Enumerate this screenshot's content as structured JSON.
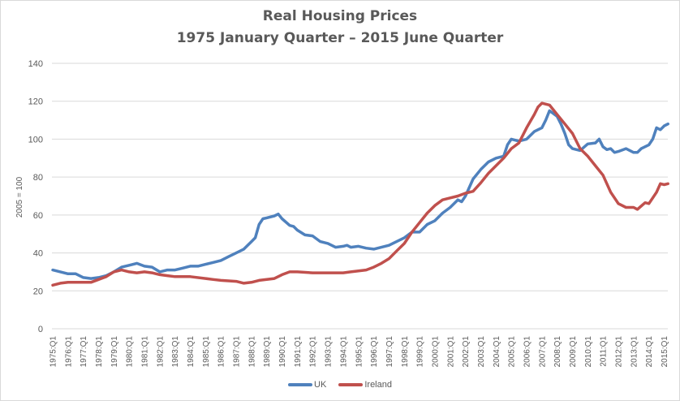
{
  "chart_data": {
    "type": "line",
    "title": "Real Housing  Prices",
    "subtitle": "1975 January  Quarter – 2015 June Quarter",
    "xlabel": "",
    "ylabel": "2005 = 100",
    "ylim": [
      0,
      140
    ],
    "xlim": [
      1975.0,
      2015.25
    ],
    "yticks": [
      0,
      20,
      40,
      60,
      80,
      100,
      120,
      140
    ],
    "grid": true,
    "legend_position": "bottom",
    "xtick_labels": [
      "1975:Q1",
      "1976:Q1",
      "1977:Q1",
      "1978:Q1",
      "1979:Q1",
      "1980:Q1",
      "1981:Q1",
      "1982:Q1",
      "1983:Q1",
      "1984:Q1",
      "1985:Q1",
      "1986:Q1",
      "1987:Q1",
      "1988:Q1",
      "1989:Q1",
      "1990:Q1",
      "1991:Q1",
      "1992:Q1",
      "1993:Q1",
      "1994:Q1",
      "1995:Q1",
      "1996:Q1",
      "1997:Q1",
      "1998:Q1",
      "1999:Q1",
      "2000:Q1",
      "2001:Q1",
      "2002:Q1",
      "2003:Q1",
      "2004:Q1",
      "2005:Q1",
      "2006:Q1",
      "2007:Q1",
      "2008:Q1",
      "2009:Q1",
      "2010:Q1",
      "2011:Q1",
      "2012:Q1",
      "2013:Q1",
      "2014:Q1",
      "2015:Q1"
    ],
    "series": [
      {
        "name": "UK",
        "color": "#4f81bd",
        "points": [
          [
            1975.0,
            31
          ],
          [
            1975.5,
            30
          ],
          [
            1976.0,
            29
          ],
          [
            1976.5,
            29
          ],
          [
            1977.0,
            27
          ],
          [
            1977.5,
            26.5
          ],
          [
            1978.0,
            27
          ],
          [
            1978.5,
            28
          ],
          [
            1979.0,
            30
          ],
          [
            1979.5,
            32.5
          ],
          [
            1980.0,
            33.5
          ],
          [
            1980.5,
            34.5
          ],
          [
            1981.0,
            33
          ],
          [
            1981.5,
            32.5
          ],
          [
            1982.0,
            30
          ],
          [
            1982.5,
            31
          ],
          [
            1983.0,
            31
          ],
          [
            1983.5,
            32
          ],
          [
            1984.0,
            33
          ],
          [
            1984.5,
            33
          ],
          [
            1985.0,
            34
          ],
          [
            1985.5,
            35
          ],
          [
            1986.0,
            36
          ],
          [
            1986.5,
            38
          ],
          [
            1987.0,
            40
          ],
          [
            1987.5,
            42
          ],
          [
            1988.0,
            46
          ],
          [
            1988.25,
            48
          ],
          [
            1988.5,
            55
          ],
          [
            1988.75,
            58
          ],
          [
            1989.0,
            58.5
          ],
          [
            1989.5,
            59.5
          ],
          [
            1989.75,
            60.5
          ],
          [
            1990.0,
            58
          ],
          [
            1990.5,
            54.5
          ],
          [
            1990.75,
            54
          ],
          [
            1991.0,
            52
          ],
          [
            1991.5,
            49.5
          ],
          [
            1992.0,
            49
          ],
          [
            1992.5,
            46
          ],
          [
            1993.0,
            45
          ],
          [
            1993.5,
            43
          ],
          [
            1994.0,
            43.5
          ],
          [
            1994.25,
            44
          ],
          [
            1994.5,
            43
          ],
          [
            1995.0,
            43.5
          ],
          [
            1995.5,
            42.5
          ],
          [
            1996.0,
            42
          ],
          [
            1996.5,
            43
          ],
          [
            1997.0,
            44
          ],
          [
            1997.5,
            46
          ],
          [
            1998.0,
            48
          ],
          [
            1998.5,
            51
          ],
          [
            1999.0,
            51
          ],
          [
            1999.5,
            55
          ],
          [
            2000.0,
            57
          ],
          [
            2000.5,
            61
          ],
          [
            2001.0,
            64
          ],
          [
            2001.5,
            68
          ],
          [
            2001.75,
            67
          ],
          [
            2002.0,
            70
          ],
          [
            2002.5,
            79
          ],
          [
            2003.0,
            84
          ],
          [
            2003.5,
            88
          ],
          [
            2004.0,
            90
          ],
          [
            2004.5,
            91
          ],
          [
            2004.75,
            97
          ],
          [
            2005.0,
            100
          ],
          [
            2005.5,
            99
          ],
          [
            2006.0,
            100
          ],
          [
            2006.5,
            104
          ],
          [
            2007.0,
            106
          ],
          [
            2007.25,
            110
          ],
          [
            2007.5,
            115
          ],
          [
            2008.0,
            112
          ],
          [
            2008.25,
            108
          ],
          [
            2008.5,
            103
          ],
          [
            2008.75,
            97
          ],
          [
            2009.0,
            95
          ],
          [
            2009.5,
            94
          ],
          [
            2010.0,
            97.5
          ],
          [
            2010.5,
            98
          ],
          [
            2010.75,
            100
          ],
          [
            2011.0,
            96
          ],
          [
            2011.25,
            94.5
          ],
          [
            2011.5,
            95
          ],
          [
            2011.75,
            93
          ],
          [
            2012.0,
            93.5
          ],
          [
            2012.5,
            95
          ],
          [
            2013.0,
            93
          ],
          [
            2013.25,
            93
          ],
          [
            2013.5,
            95
          ],
          [
            2014.0,
            97
          ],
          [
            2014.25,
            100
          ],
          [
            2014.5,
            106
          ],
          [
            2014.75,
            105
          ],
          [
            2015.0,
            107
          ],
          [
            2015.25,
            108
          ]
        ]
      },
      {
        "name": "Ireland",
        "color": "#c0504d",
        "points": [
          [
            1975.0,
            23
          ],
          [
            1975.5,
            24
          ],
          [
            1976.0,
            24.5
          ],
          [
            1977.0,
            24.5
          ],
          [
            1977.5,
            24.5
          ],
          [
            1978.0,
            26
          ],
          [
            1978.5,
            27.5
          ],
          [
            1979.0,
            30
          ],
          [
            1979.5,
            31
          ],
          [
            1980.0,
            30
          ],
          [
            1980.5,
            29.5
          ],
          [
            1981.0,
            30
          ],
          [
            1981.5,
            29.5
          ],
          [
            1982.0,
            28.5
          ],
          [
            1982.5,
            28
          ],
          [
            1983.0,
            27.5
          ],
          [
            1984.0,
            27.5
          ],
          [
            1985.0,
            26.5
          ],
          [
            1985.5,
            26
          ],
          [
            1986.0,
            25.5
          ],
          [
            1987.0,
            25
          ],
          [
            1987.5,
            24
          ],
          [
            1988.0,
            24.5
          ],
          [
            1988.5,
            25.5
          ],
          [
            1989.0,
            26
          ],
          [
            1989.5,
            26.5
          ],
          [
            1990.0,
            28.5
          ],
          [
            1990.5,
            30
          ],
          [
            1991.0,
            30
          ],
          [
            1992.0,
            29.5
          ],
          [
            1993.0,
            29.5
          ],
          [
            1994.0,
            29.5
          ],
          [
            1994.5,
            30
          ],
          [
            1995.0,
            30.5
          ],
          [
            1995.5,
            31
          ],
          [
            1996.0,
            32.5
          ],
          [
            1996.5,
            34.5
          ],
          [
            1997.0,
            37
          ],
          [
            1997.5,
            41
          ],
          [
            1998.0,
            45
          ],
          [
            1998.5,
            51
          ],
          [
            1999.0,
            56
          ],
          [
            1999.5,
            61
          ],
          [
            2000.0,
            65
          ],
          [
            2000.5,
            68
          ],
          [
            2001.0,
            69
          ],
          [
            2001.5,
            70
          ],
          [
            2002.0,
            71.5
          ],
          [
            2002.5,
            72.5
          ],
          [
            2003.0,
            77
          ],
          [
            2003.5,
            82
          ],
          [
            2004.0,
            86
          ],
          [
            2004.5,
            90
          ],
          [
            2005.0,
            95
          ],
          [
            2005.5,
            98
          ],
          [
            2006.0,
            106
          ],
          [
            2006.5,
            113
          ],
          [
            2006.75,
            117
          ],
          [
            2007.0,
            119
          ],
          [
            2007.5,
            118
          ],
          [
            2008.0,
            113
          ],
          [
            2008.5,
            108
          ],
          [
            2009.0,
            103
          ],
          [
            2009.5,
            95
          ],
          [
            2010.0,
            91
          ],
          [
            2010.5,
            86
          ],
          [
            2011.0,
            81
          ],
          [
            2011.5,
            72
          ],
          [
            2012.0,
            66
          ],
          [
            2012.5,
            64
          ],
          [
            2013.0,
            64
          ],
          [
            2013.25,
            63
          ],
          [
            2013.75,
            66.5
          ],
          [
            2014.0,
            66
          ],
          [
            2014.5,
            72
          ],
          [
            2014.75,
            76.5
          ],
          [
            2015.0,
            76
          ],
          [
            2015.25,
            76.5
          ]
        ]
      }
    ]
  },
  "legend": {
    "items": [
      {
        "label": "UK",
        "color": "#4f81bd"
      },
      {
        "label": "Ireland",
        "color": "#c0504d"
      }
    ]
  }
}
